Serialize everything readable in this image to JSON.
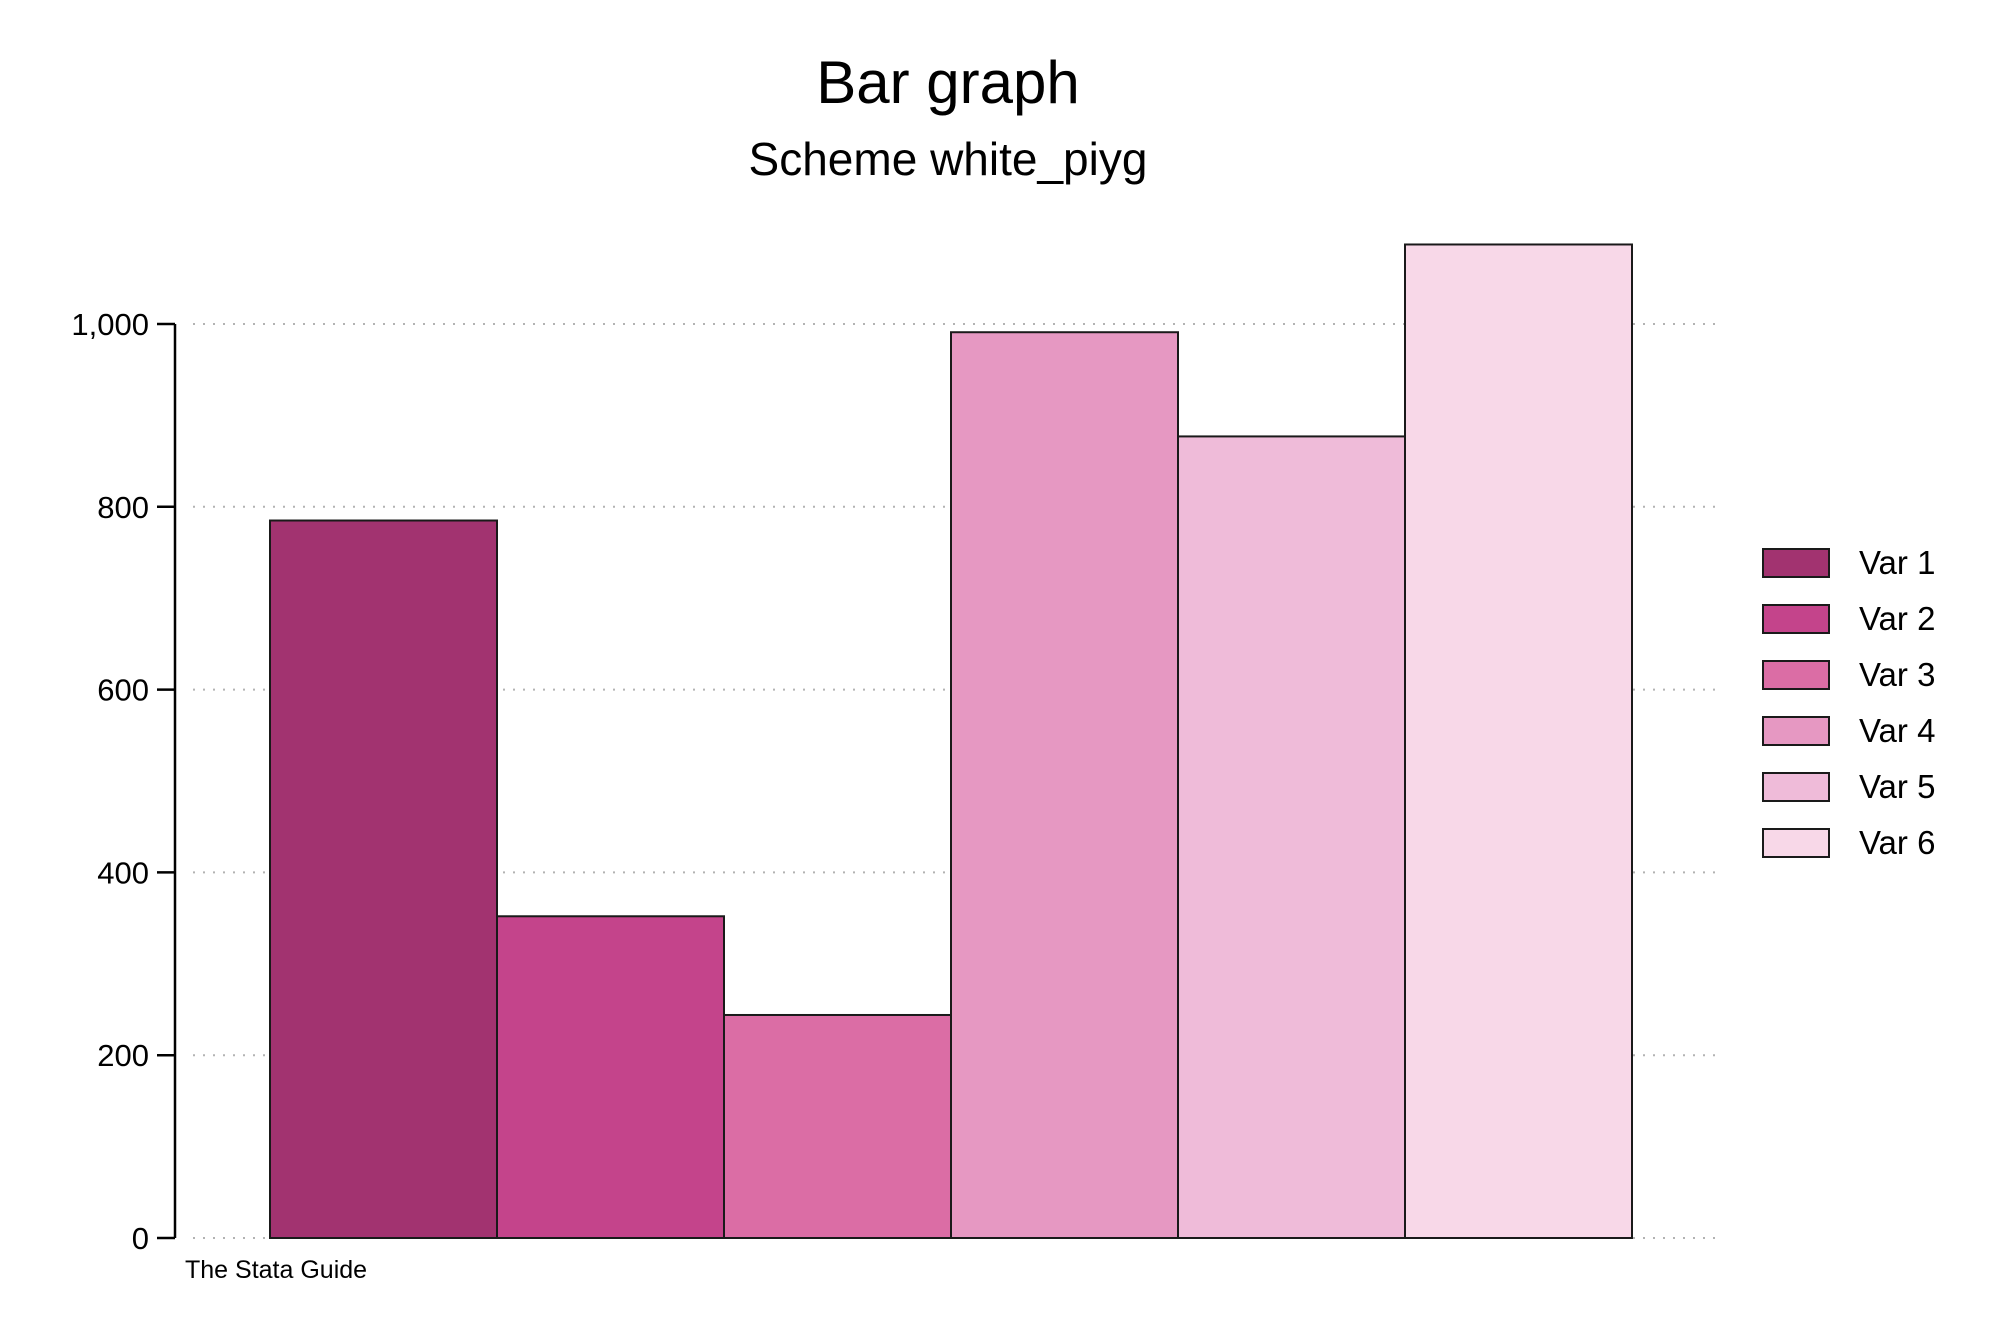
{
  "chart_data": {
    "type": "bar",
    "title": "Bar graph",
    "subtitle": "Scheme white_piyg",
    "note": "The Stata Guide",
    "ylim": [
      0,
      1000
    ],
    "yticks": [
      0,
      200,
      400,
      600,
      800,
      1000
    ],
    "ytick_labels": [
      "0",
      "200",
      "400",
      "600",
      "800",
      "1,000"
    ],
    "grid": "horizontal dotted",
    "legend_position": "right",
    "series": [
      {
        "name": "Var 1",
        "value": 785,
        "color": "#A23370"
      },
      {
        "name": "Var 2",
        "value": 352,
        "color": "#C4448B"
      },
      {
        "name": "Var 3",
        "value": 244,
        "color": "#DB6DA5"
      },
      {
        "name": "Var 4",
        "value": 991,
        "color": "#E698C2"
      },
      {
        "name": "Var 5",
        "value": 877,
        "color": "#EFBBD9"
      },
      {
        "name": "Var 6",
        "value": 1087,
        "color": "#F8D8E8"
      }
    ]
  }
}
